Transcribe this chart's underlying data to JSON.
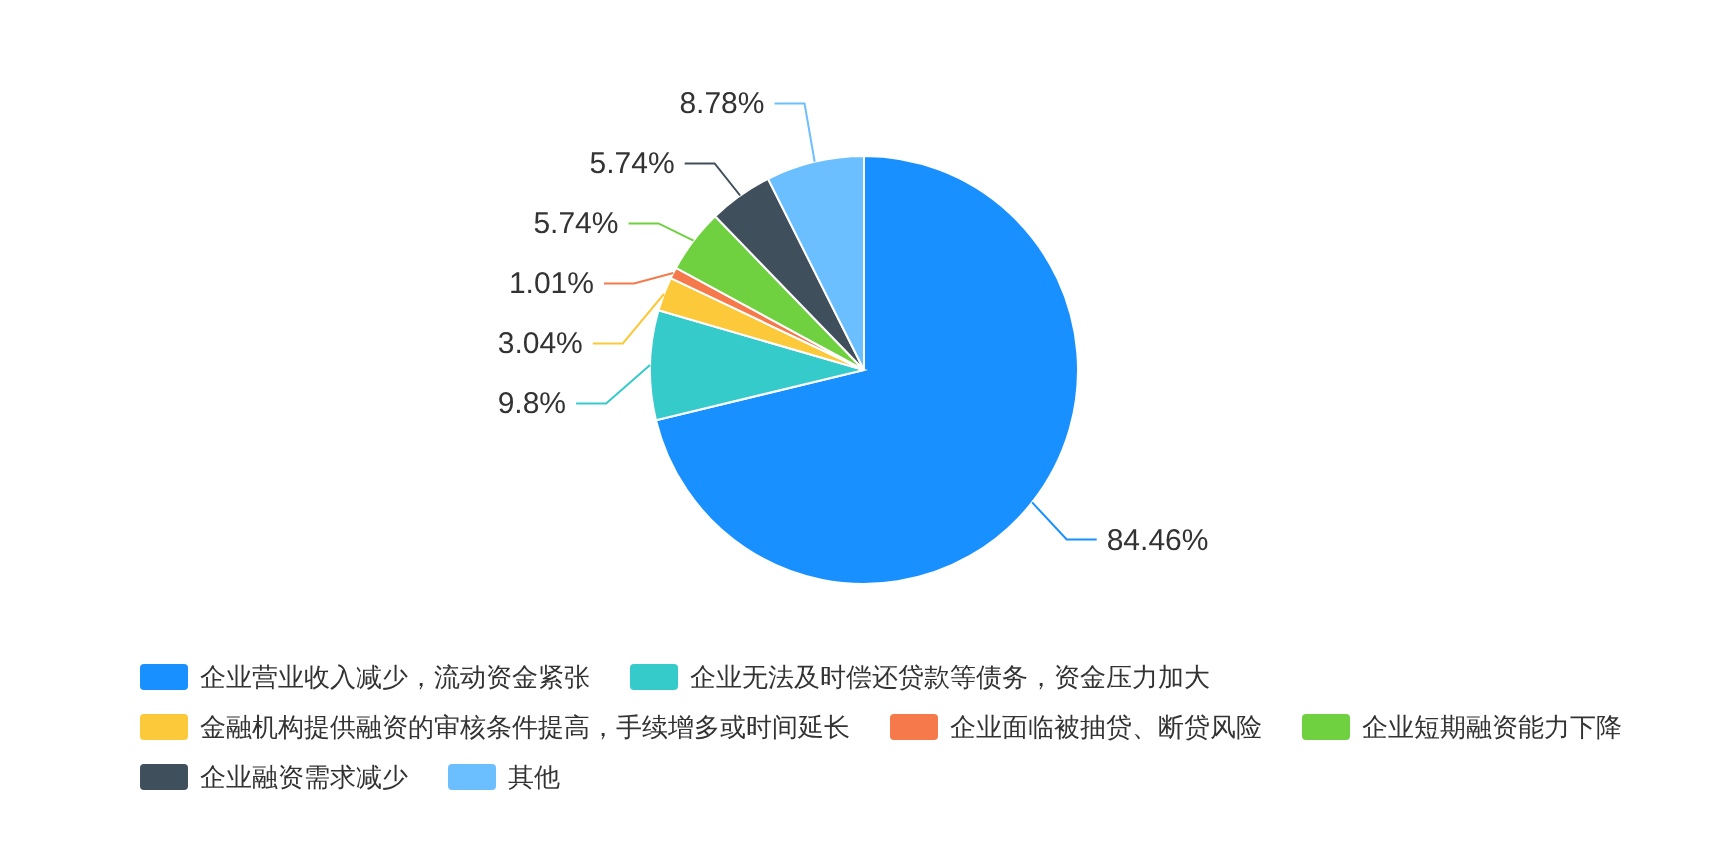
{
  "chart_data": {
    "type": "pie",
    "categories": [
      "企业营业收入减少，流动资金紧张",
      "企业无法及时偿还贷款等债务，资金压力加大",
      "金融机构提供融资的审核条件提高，手续增多或时间延长",
      "企业面临被抽贷、断贷风险",
      "企业短期融资能力下降",
      "企业融资需求减少",
      "其他"
    ],
    "values": [
      84.46,
      9.8,
      3.04,
      1.01,
      5.74,
      5.74,
      8.78
    ],
    "colors": [
      "#1890ff",
      "#36cbcb",
      "#fbc93a",
      "#f5794a",
      "#6fd13f",
      "#3f4f5c",
      "#6cbfff"
    ],
    "value_labels": [
      "84.46%",
      "9.8%",
      "3.04%",
      "1.01%",
      "5.74%",
      "5.74%",
      "8.78%"
    ],
    "legend": "bottom"
  }
}
